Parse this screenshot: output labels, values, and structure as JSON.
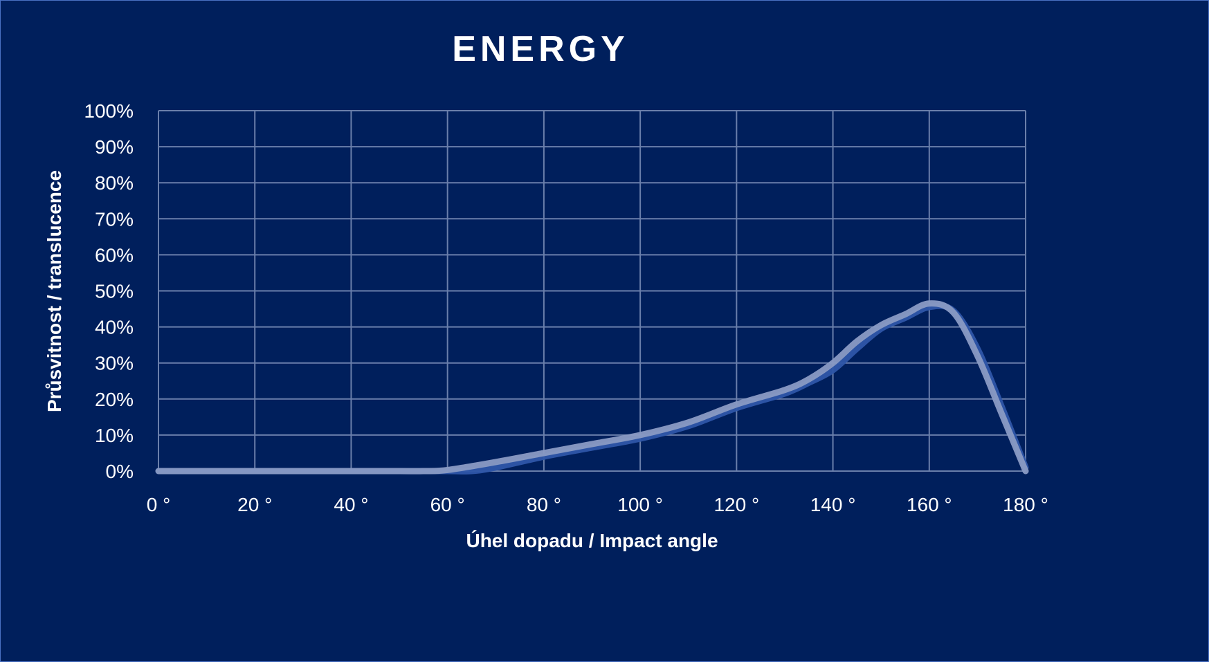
{
  "chart_data": {
    "type": "line",
    "title": "ENERGY",
    "xlabel": "Úhel dopadu / Impact angle",
    "ylabel": "Průsvitnost / translucence",
    "xlim": [
      0,
      180
    ],
    "ylim": [
      0,
      100
    ],
    "x_ticks": [
      "0 °",
      "20 °",
      "40 °",
      "60 °",
      "80 °",
      "100 °",
      "120 °",
      "140 °",
      "160 °",
      "180 °"
    ],
    "y_ticks": [
      "0%",
      "10%",
      "20%",
      "30%",
      "40%",
      "50%",
      "60%",
      "70%",
      "80%",
      "90%",
      "100%"
    ],
    "grid": true,
    "smooth": true,
    "series": [
      {
        "color": "#2e56a8",
        "x": [
          0,
          20,
          40,
          50,
          60,
          65,
          70,
          80,
          90,
          100,
          110,
          120,
          130,
          135,
          140,
          145,
          150,
          155,
          160,
          165,
          170,
          175,
          180
        ],
        "values": [
          0,
          0,
          0,
          0,
          0,
          0,
          1,
          4,
          6.5,
          9,
          12.5,
          17.5,
          21.5,
          24.5,
          28,
          34,
          39.5,
          42.5,
          45.5,
          44.5,
          34,
          18,
          1
        ]
      },
      {
        "color": "#8a9bc4",
        "x": [
          0,
          20,
          40,
          50,
          55,
          60,
          70,
          80,
          90,
          100,
          110,
          120,
          130,
          135,
          140,
          145,
          150,
          155,
          160,
          165,
          170,
          175,
          180
        ],
        "values": [
          0,
          0,
          0,
          0,
          0,
          0.3,
          2.5,
          5,
          7.5,
          10,
          13.5,
          18.5,
          22.5,
          25.5,
          30,
          36,
          40.5,
          43.5,
          46.5,
          44,
          32,
          16,
          0
        ]
      }
    ],
    "colors": {
      "background": "#001f5c",
      "grid": "#6a7fab",
      "text": "#ffffff"
    }
  }
}
